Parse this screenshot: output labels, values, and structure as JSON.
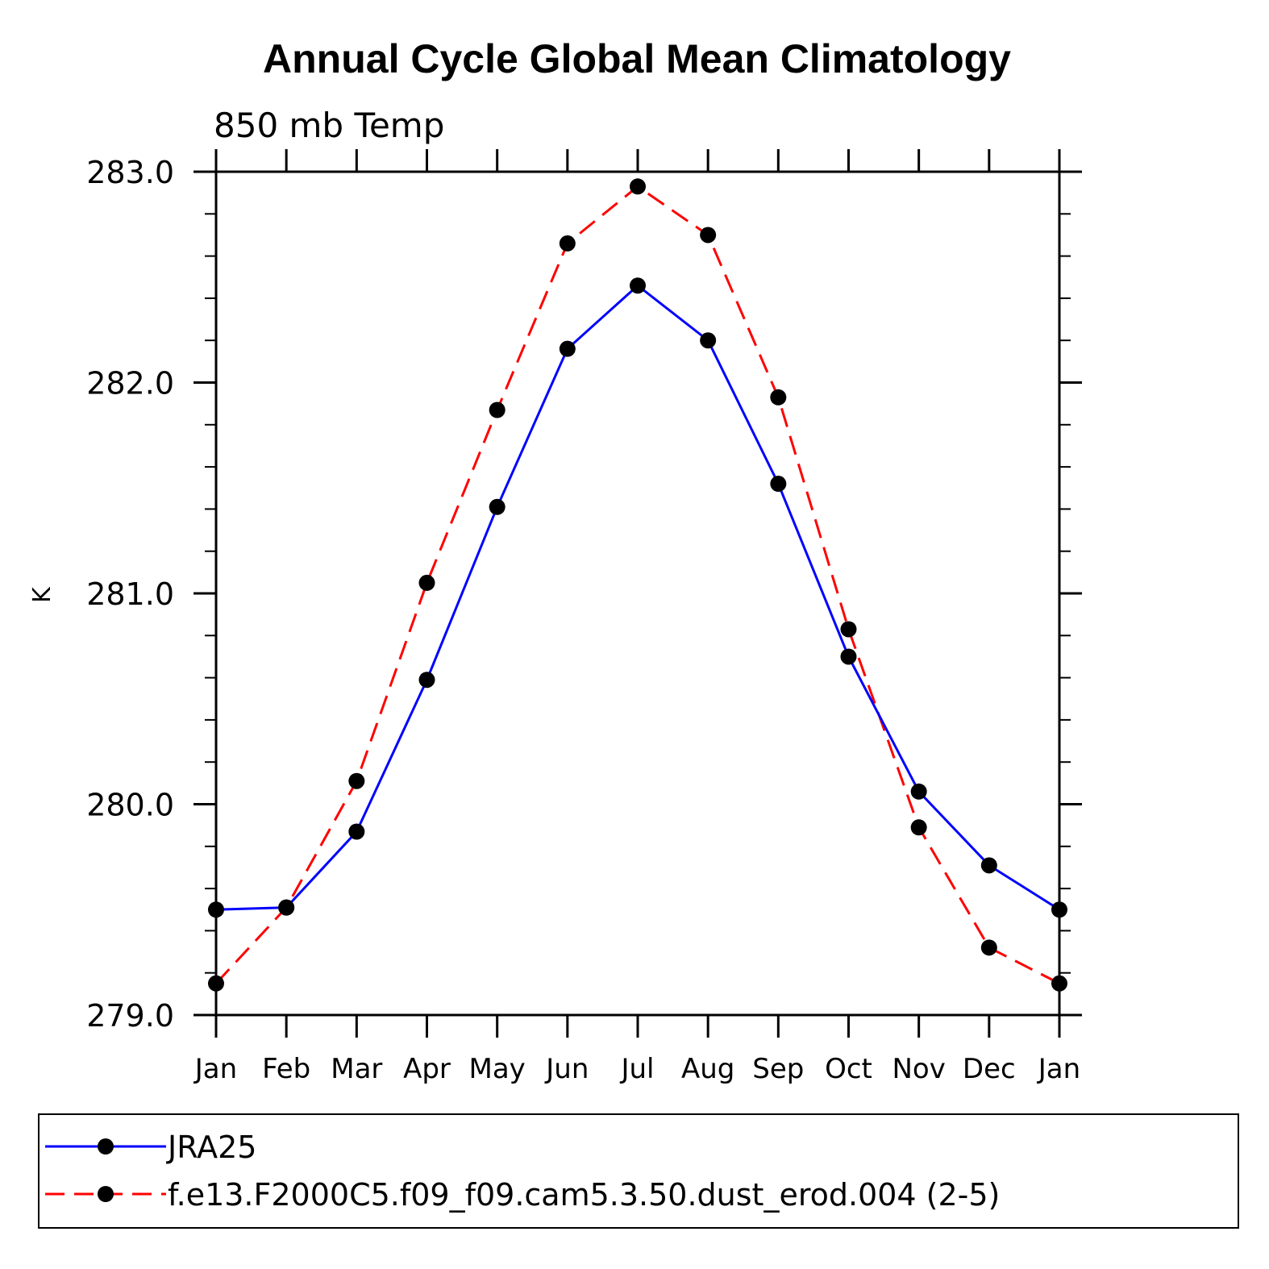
{
  "chart_data": {
    "type": "line",
    "title": "Annual Cycle Global Mean Climatology",
    "subtitle": "850 mb Temp",
    "xlabel": "",
    "ylabel": "K",
    "categories": [
      "Jan",
      "Feb",
      "Mar",
      "Apr",
      "May",
      "Jun",
      "Jul",
      "Aug",
      "Sep",
      "Oct",
      "Nov",
      "Dec",
      "Jan"
    ],
    "ylim": [
      279.0,
      283.0
    ],
    "yticks": [
      279.0,
      280.0,
      281.0,
      282.0,
      283.0
    ],
    "ytick_labels": [
      "279.0",
      "280.0",
      "281.0",
      "282.0",
      "283.0"
    ],
    "grid": false,
    "legend_position": "bottom",
    "series": [
      {
        "name": "JRA25",
        "color": "#0000ff",
        "style": "solid",
        "marker": "filled-circle",
        "values": [
          279.5,
          279.51,
          279.87,
          280.59,
          281.41,
          282.16,
          282.46,
          282.2,
          281.52,
          280.7,
          280.06,
          279.71,
          279.5
        ]
      },
      {
        "name": "f.e13.F2000C5.f09_f09.cam5.3.50.dust_erod.004 (2-5)",
        "color": "#ff0000",
        "style": "dashed",
        "marker": "filled-circle",
        "values": [
          279.15,
          279.51,
          280.11,
          281.05,
          281.87,
          282.66,
          282.93,
          282.7,
          281.93,
          280.83,
          279.89,
          279.32,
          279.15
        ]
      }
    ]
  }
}
